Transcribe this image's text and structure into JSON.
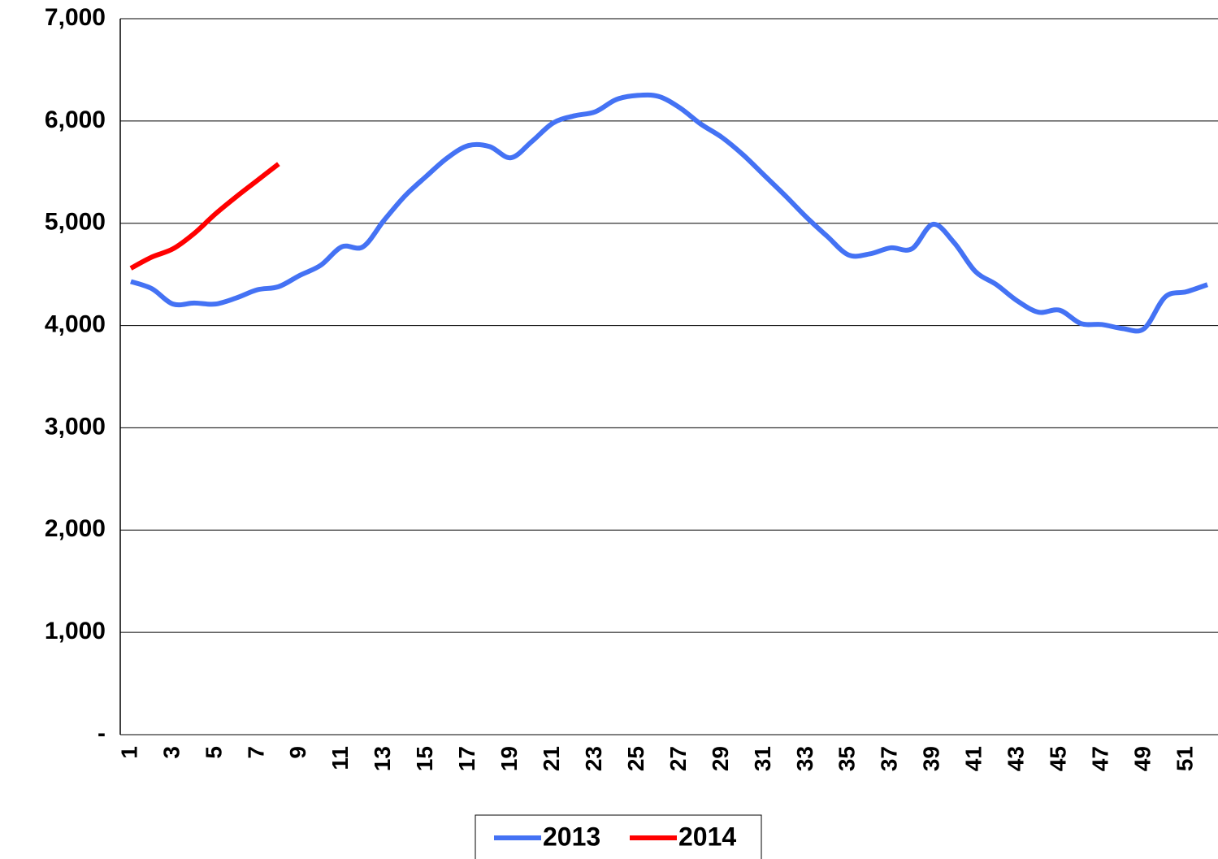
{
  "chart_data": {
    "type": "line",
    "categories": [
      "1",
      null,
      "3",
      null,
      "5",
      null,
      "7",
      null,
      "9",
      null,
      "11",
      null,
      "13",
      null,
      "15",
      null,
      "17",
      null,
      "19",
      null,
      "21",
      null,
      "23",
      null,
      "25",
      null,
      "27",
      null,
      "29",
      null,
      "31",
      null,
      "33",
      null,
      "35",
      null,
      "37",
      null,
      "39",
      null,
      "41",
      null,
      "43",
      null,
      "45",
      null,
      "47",
      null,
      "49",
      null,
      "51",
      null
    ],
    "series": [
      {
        "name": "2013",
        "color": "#4472f4",
        "values": [
          4430,
          4360,
          4210,
          4220,
          4210,
          4270,
          4350,
          4380,
          4490,
          4590,
          4770,
          4770,
          5030,
          5270,
          5460,
          5640,
          5760,
          5750,
          5640,
          5800,
          5980,
          6050,
          6090,
          6210,
          6250,
          6240,
          6130,
          5970,
          5840,
          5670,
          5470,
          5270,
          5060,
          4870,
          4690,
          4700,
          4760,
          4750,
          4990,
          4810,
          4530,
          4400,
          4240,
          4130,
          4150,
          4020,
          4010,
          3970,
          3970,
          4280,
          4330,
          4400
        ]
      },
      {
        "name": "2014",
        "color": "#ff0000",
        "values": [
          4560,
          4670,
          4750,
          4900,
          5090,
          5260,
          5420,
          5580,
          null,
          null,
          null,
          null,
          null,
          null,
          null,
          null,
          null,
          null,
          null,
          null,
          null,
          null,
          null,
          null,
          null,
          null,
          null,
          null,
          null,
          null,
          null,
          null,
          null,
          null,
          null,
          null,
          null,
          null,
          null,
          null,
          null,
          null,
          null,
          null,
          null,
          null,
          null,
          null,
          null,
          null,
          null,
          null
        ]
      }
    ],
    "ylim": [
      0,
      7000
    ],
    "yticks": [
      {
        "value": 0,
        "label": "-"
      },
      {
        "value": 1000,
        "label": "1,000"
      },
      {
        "value": 2000,
        "label": "2,000"
      },
      {
        "value": 3000,
        "label": "3,000"
      },
      {
        "value": 4000,
        "label": "4,000"
      },
      {
        "value": 5000,
        "label": "5,000"
      },
      {
        "value": 6000,
        "label": "6,000"
      },
      {
        "value": 7000,
        "label": "7,000"
      }
    ],
    "grid": true,
    "legend": "bottom"
  }
}
